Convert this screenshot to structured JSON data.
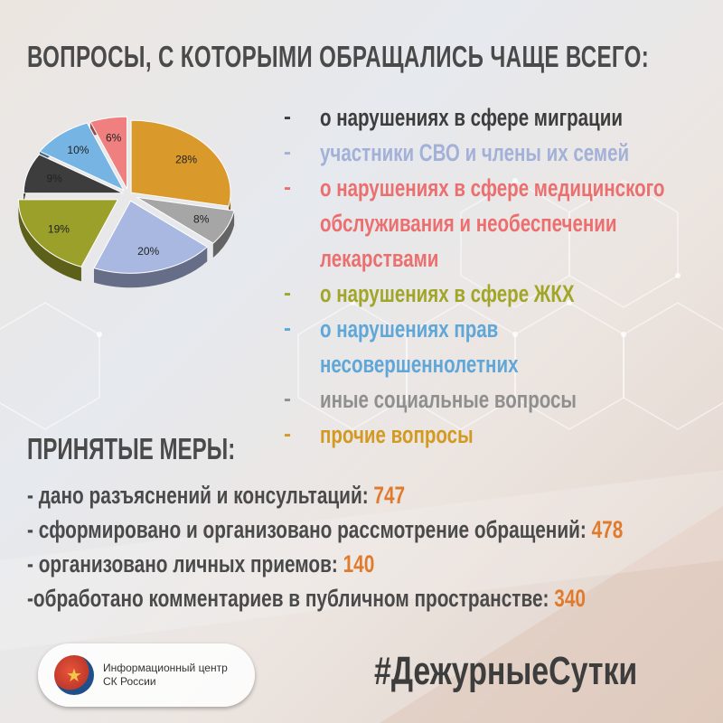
{
  "title": "ВОПРОСЫ, С КОТОРЫМИ ОБРАЩАЛИСЬ ЧАЩЕ ВСЕГО:",
  "chart_data": {
    "type": "pie",
    "categories": [
      "прочие вопросы",
      "иные социальные вопросы",
      "участники СВО и члены их семей",
      "о нарушениях в сфере ЖКХ",
      "о нарушениях в сфере миграции",
      "о нарушениях прав несовершеннолетних",
      "о нарушениях в сфере медицинского обслуживания и необеспечении лекарствами"
    ],
    "values": [
      28,
      8,
      20,
      19,
      9,
      10,
      6
    ],
    "labels": [
      "28%",
      "8%",
      "20%",
      "19%",
      "9%",
      "10%",
      "6%"
    ],
    "colors": [
      "#d99a2b",
      "#a6a6a6",
      "#a8b8e0",
      "#9aa02a",
      "#3d3d3d",
      "#75b4e3",
      "#f08080"
    ]
  },
  "legend": [
    {
      "dash": "-",
      "text": "о нарушениях в сфере миграции",
      "color": "#3d3d3d"
    },
    {
      "dash": "-",
      "text": "участники СВО и члены их семей",
      "color": "#a3b1d8"
    },
    {
      "dash": "-",
      "text": "о нарушениях в сфере медицинского",
      "color": "#ec6f6f"
    },
    {
      "dash": "",
      "text": "обслуживания и необеспечении",
      "color": "#ec6f6f"
    },
    {
      "dash": "",
      "text": "лекарствами",
      "color": "#ec6f6f"
    },
    {
      "dash": "-",
      "text": "о нарушениях в сфере ЖКХ",
      "color": "#a2a628"
    },
    {
      "dash": "-",
      "text": "о нарушениях прав",
      "color": "#5fa7d8"
    },
    {
      "dash": "",
      "text": "несовершеннолетних",
      "color": "#5fa7d8"
    },
    {
      "dash": "-",
      "text": "иные социальные вопросы",
      "color": "#8f8f8f"
    },
    {
      "dash": "-",
      "text": "прочие вопросы",
      "color": "#d39a22"
    }
  ],
  "measures_title": "ПРИНЯТЫЕ МЕРЫ:",
  "measures": [
    {
      "text": "- дано разъяснений и консультаций: ",
      "value": "747"
    },
    {
      "text": "- сформировано и организовано рассмотрение обращений: ",
      "value": "478"
    },
    {
      "text": "- организовано личных приемов: ",
      "value": "140"
    },
    {
      "text": "-обработано комментариев в публичном пространстве: ",
      "value": "340"
    }
  ],
  "logo": {
    "line1": "Информационный центр",
    "line2": "СК России"
  },
  "hashtag": "#ДежурныеСутки"
}
